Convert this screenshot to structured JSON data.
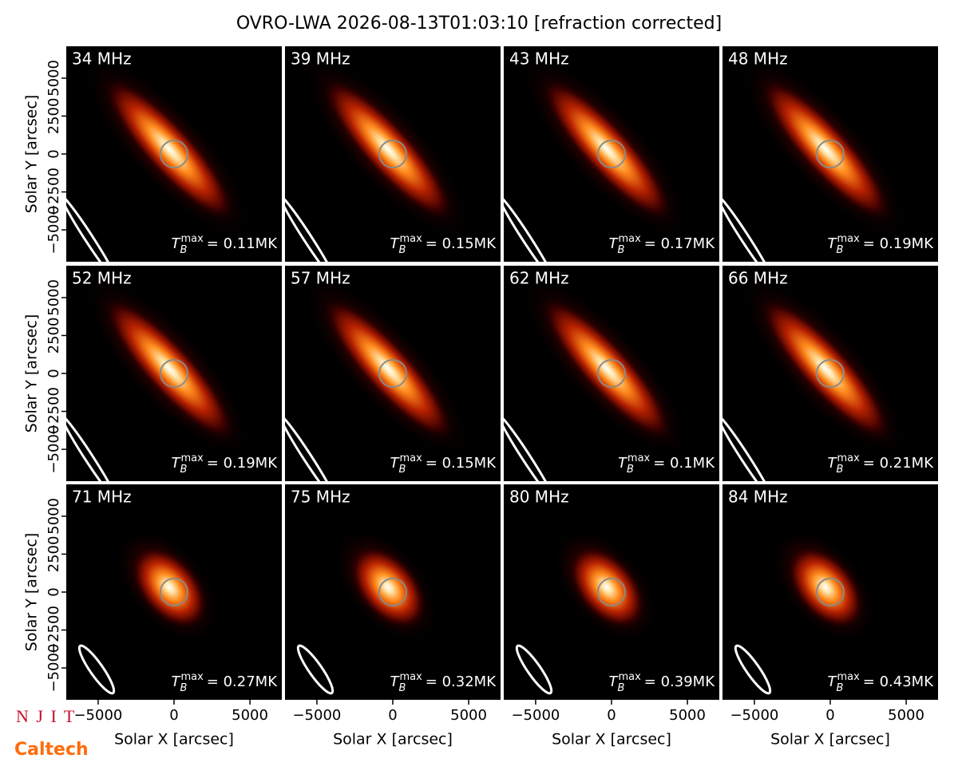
{
  "title": "OVRO-LWA 2026-08-13T01:03:10 [refraction corrected]",
  "logos": [
    "N J I T",
    "Caltech"
  ],
  "chart_data": [
    {
      "type": "image",
      "label": "34 MHz",
      "annotation": {
        "base": "T",
        "sub": "B",
        "sup": "max",
        "text": "= 0.11MK"
      },
      "xlim": [
        -7100,
        7100
      ],
      "ylim": [
        -7100,
        7100
      ],
      "ylabel": "Solar Y [arcsec]",
      "yticks": [
        {
          "value": -5000,
          "label": "−5000"
        },
        {
          "value": -2500,
          "label": "−2500"
        },
        0,
        2500,
        5000
      ]
    },
    {
      "type": "image",
      "label": "39 MHz",
      "annotation": {
        "base": "T",
        "sub": "B",
        "sup": "max",
        "text": "= 0.15MK"
      },
      "xlim": [
        -7100,
        7100
      ],
      "ylim": [
        -7100,
        7100
      ]
    },
    {
      "type": "image",
      "label": "43 MHz",
      "annotation": {
        "base": "T",
        "sub": "B",
        "sup": "max",
        "text": "= 0.17MK"
      },
      "xlim": [
        -7100,
        7100
      ],
      "ylim": [
        -7100,
        7100
      ]
    },
    {
      "type": "image",
      "label": "48 MHz",
      "annotation": {
        "base": "T",
        "sub": "B",
        "sup": "max",
        "text": "= 0.19MK"
      },
      "xlim": [
        -7100,
        7100
      ],
      "ylim": [
        -7100,
        7100
      ]
    },
    {
      "type": "image",
      "label": "52 MHz",
      "annotation": {
        "base": "T",
        "sub": "B",
        "sup": "max",
        "text": "= 0.19MK"
      },
      "xlim": [
        -7100,
        7100
      ],
      "ylim": [
        -7100,
        7100
      ],
      "ylabel": "Solar Y [arcsec]",
      "yticks": [
        {
          "value": -5000,
          "label": "−5000"
        },
        {
          "value": -2500,
          "label": "−2500"
        },
        0,
        2500,
        5000
      ]
    },
    {
      "type": "image",
      "label": "57 MHz",
      "annotation": {
        "base": "T",
        "sub": "B",
        "sup": "max",
        "text": "= 0.15MK"
      },
      "xlim": [
        -7100,
        7100
      ],
      "ylim": [
        -7100,
        7100
      ]
    },
    {
      "type": "image",
      "label": "62 MHz",
      "annotation": {
        "base": "T",
        "sub": "B",
        "sup": "max",
        "text": "= 0.1MK"
      },
      "xlim": [
        -7100,
        7100
      ],
      "ylim": [
        -7100,
        7100
      ]
    },
    {
      "type": "image",
      "label": "66 MHz",
      "annotation": {
        "base": "T",
        "sub": "B",
        "sup": "max",
        "text": "= 0.21MK"
      },
      "xlim": [
        -7100,
        7100
      ],
      "ylim": [
        -7100,
        7100
      ]
    },
    {
      "type": "image",
      "label": "71 MHz",
      "annotation": {
        "base": "T",
        "sub": "B",
        "sup": "max",
        "text": "= 0.27MK"
      },
      "xlim": [
        -7100,
        7100
      ],
      "ylim": [
        -7100,
        7100
      ],
      "ylabel": "Solar Y [arcsec]",
      "yticks": [
        {
          "value": -5000,
          "label": "−5000"
        },
        {
          "value": -2500,
          "label": "−2500"
        },
        0,
        2500,
        5000
      ],
      "xlabel": "Solar X [arcsec]",
      "xticks": [
        {
          "value": -5000,
          "label": "−5000"
        },
        0,
        5000
      ]
    },
    {
      "type": "image",
      "label": "75 MHz",
      "annotation": {
        "base": "T",
        "sub": "B",
        "sup": "max",
        "text": "= 0.32MK"
      },
      "xlim": [
        -7100,
        7100
      ],
      "ylim": [
        -7100,
        7100
      ],
      "xlabel": "Solar X [arcsec]",
      "xticks": [
        {
          "value": -5000,
          "label": "−5000"
        },
        0,
        5000
      ]
    },
    {
      "type": "image",
      "label": "80 MHz",
      "annotation": {
        "base": "T",
        "sub": "B",
        "sup": "max",
        "text": "= 0.39MK"
      },
      "xlim": [
        -7100,
        7100
      ],
      "ylim": [
        -7100,
        7100
      ],
      "xlabel": "Solar X [arcsec]",
      "xticks": [
        {
          "value": -5000,
          "label": "−5000"
        },
        0,
        5000
      ]
    },
    {
      "type": "image",
      "label": "84 MHz",
      "annotation": {
        "base": "T",
        "sub": "B",
        "sup": "max",
        "text": "= 0.43MK"
      },
      "xlim": [
        -7100,
        7100
      ],
      "ylim": [
        -7100,
        7100
      ],
      "xlabel": "Solar X [arcsec]",
      "xticks": [
        {
          "value": -5000,
          "label": "−5000"
        },
        0,
        5000
      ]
    }
  ]
}
